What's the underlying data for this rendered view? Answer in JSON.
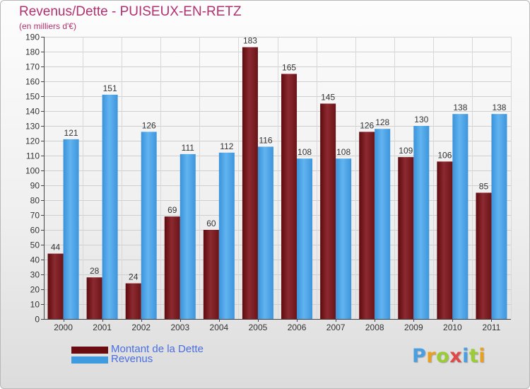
{
  "header": {
    "title": "Revenus/Dette - PUISEUX-EN-RETZ",
    "subtitle": "(en milliers d'€)"
  },
  "colors": {
    "dette": "#7a1c22",
    "revenus": "#4aa3e6",
    "title": "#b03070",
    "legend_text": "#4a6ee0"
  },
  "legend": {
    "items": [
      {
        "label": "Montant de la Dette",
        "color": "#6b0c10"
      },
      {
        "label": "Revenus",
        "color": "#3f9be0"
      }
    ]
  },
  "logo": {
    "text": "Proxiti",
    "letter_colors": [
      "#4a9fe0",
      "#e8a020",
      "#9acd32",
      "#e04848",
      "#4a9fe0",
      "#9acd32",
      "#e8a020"
    ]
  },
  "chart_data": {
    "type": "bar",
    "title": "Revenus/Dette - PUISEUX-EN-RETZ",
    "subtitle": "(en milliers d'€)",
    "categories": [
      "2000",
      "2001",
      "2002",
      "2003",
      "2004",
      "2005",
      "2006",
      "2007",
      "2008",
      "2009",
      "2010",
      "2011"
    ],
    "series": [
      {
        "name": "Montant de la Dette",
        "values": [
          44,
          28,
          24,
          69,
          60,
          183,
          165,
          145,
          126,
          109,
          106,
          85
        ]
      },
      {
        "name": "Revenus",
        "values": [
          121,
          151,
          126,
          111,
          112,
          116,
          108,
          108,
          128,
          130,
          138,
          138
        ]
      }
    ],
    "ylim": [
      0,
      190
    ],
    "ytick_step": 10,
    "yticks": [
      "0",
      "10",
      "20",
      "30",
      "40",
      "50",
      "60",
      "70",
      "80",
      "90",
      "100",
      "110",
      "120",
      "130",
      "140",
      "150",
      "160",
      "170",
      "180",
      "190"
    ],
    "grid": true,
    "legend_position": "bottom-left",
    "data_labels": true
  }
}
